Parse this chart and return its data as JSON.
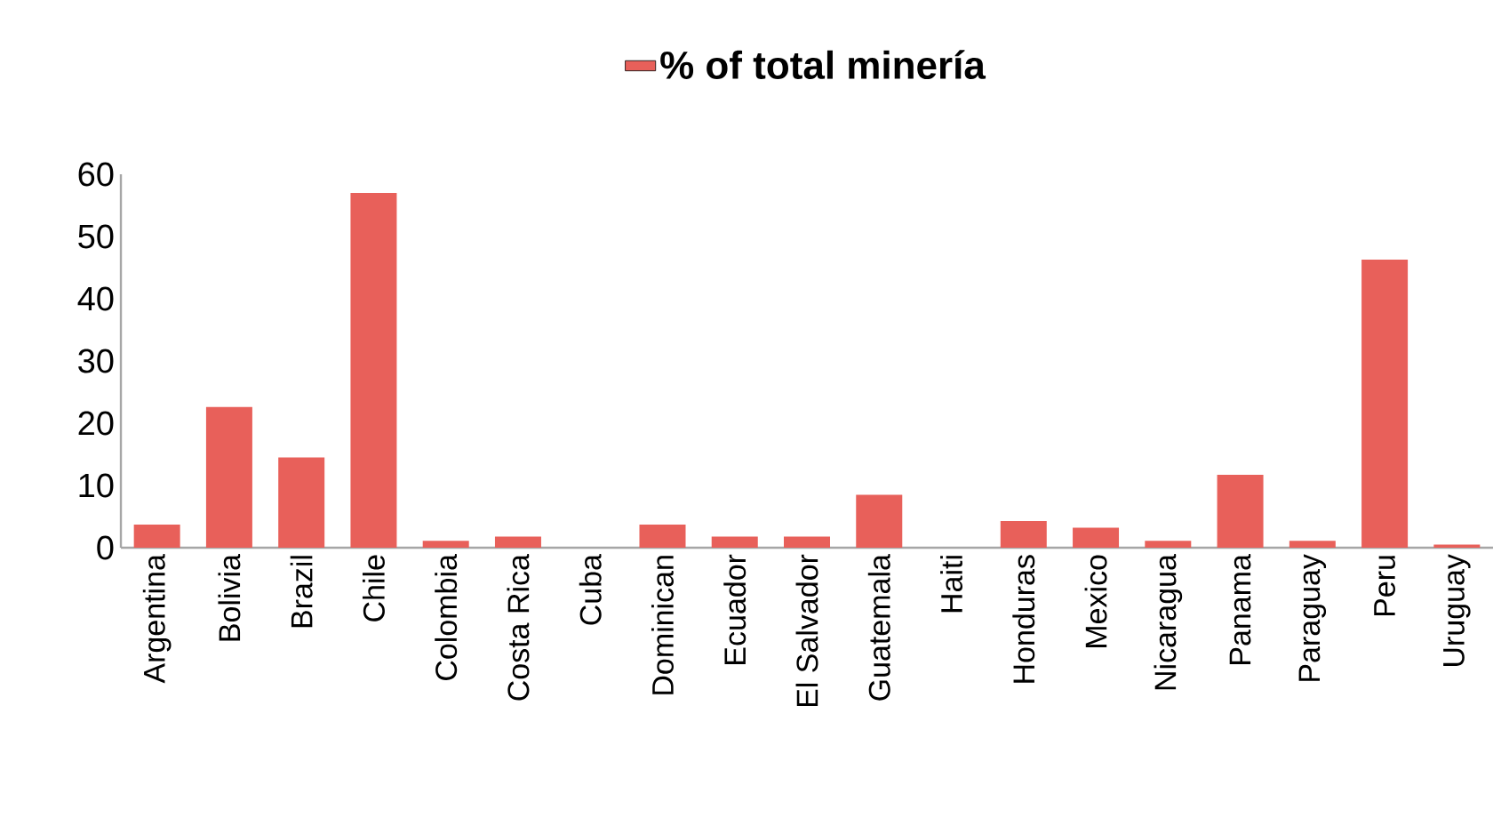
{
  "chart_data": {
    "type": "bar",
    "categories": [
      "Argentina",
      "Bolivia",
      "Brazil",
      "Chile",
      "Colombia",
      "Costa Rica",
      "Cuba",
      "Dominican",
      "Ecuador",
      "El Salvador",
      "Guatemala",
      "Haiti",
      "Honduras",
      "Mexico",
      "Nicaragua",
      "Panama",
      "Paraguay",
      "Peru",
      "Uruguay"
    ],
    "series": [
      {
        "name": "% of total minería",
        "color": "#e8605a",
        "values": [
          3.7,
          22.6,
          14.5,
          57,
          1.1,
          1.8,
          0,
          3.7,
          1.8,
          1.8,
          8.5,
          0,
          4.3,
          3.2,
          1.1,
          11.7,
          1.1,
          46.3,
          0.5
        ]
      }
    ],
    "ylim": [
      0,
      60
    ],
    "yticks": [
      0,
      10,
      20,
      30,
      40,
      50,
      60
    ],
    "legend": "top",
    "grid": false
  }
}
